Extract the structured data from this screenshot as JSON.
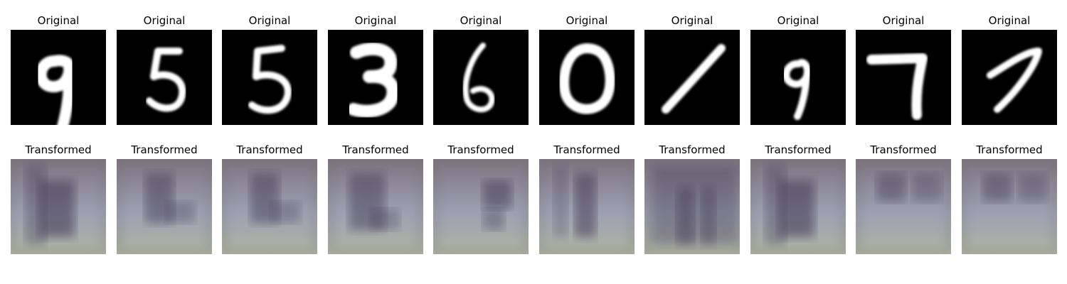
{
  "figure": {
    "original_label": "Original",
    "transformed_label": "Transformed"
  },
  "samples": [
    {
      "digit": "9"
    },
    {
      "digit": "5"
    },
    {
      "digit": "5"
    },
    {
      "digit": "3"
    },
    {
      "digit": "6"
    },
    {
      "digit": "0"
    },
    {
      "digit": "1"
    },
    {
      "digit": "9"
    },
    {
      "digit": "7"
    },
    {
      "digit": "7"
    }
  ],
  "colors": {
    "background": "#ffffff",
    "original_bg": "#000000",
    "stroke": "#ffffff",
    "transformed_base": "#8f8f93",
    "transformed_shadow": "#3d3550",
    "transformed_bottom": "#b0b5a3"
  }
}
